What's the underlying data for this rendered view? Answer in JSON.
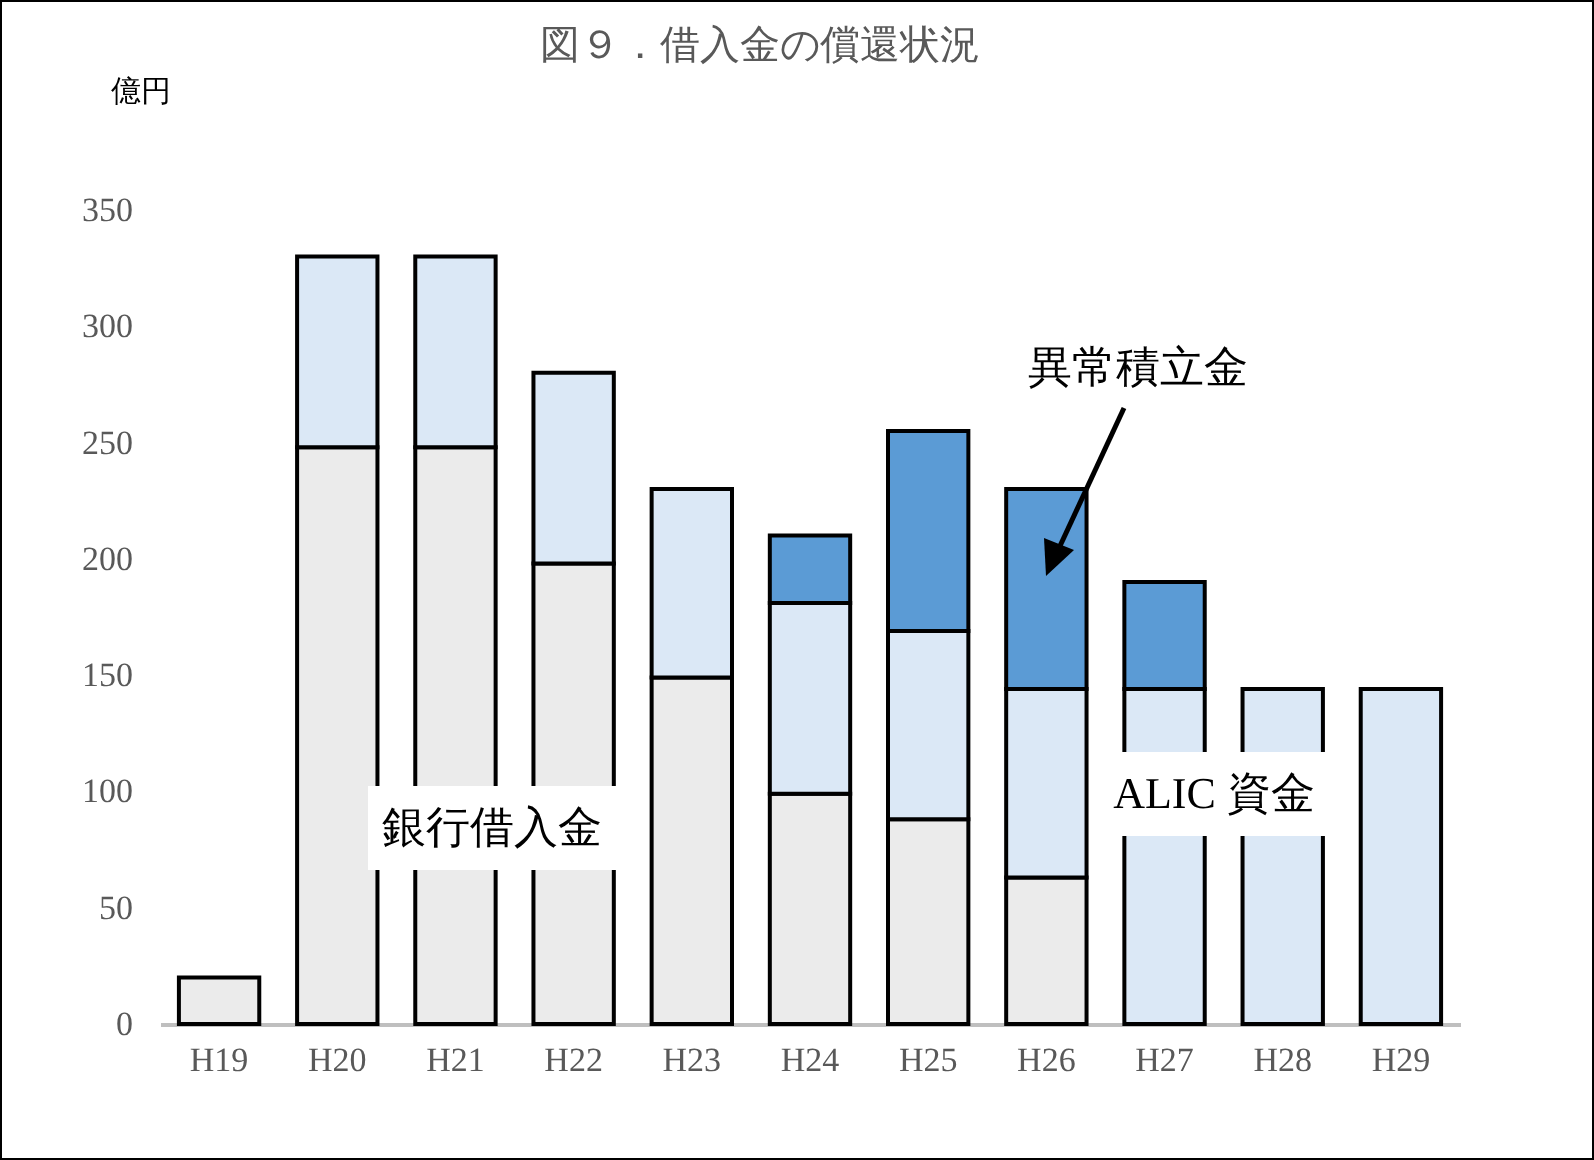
{
  "chart_data": {
    "type": "bar",
    "title": "図９．借入金の償還状況",
    "ylabel": "億円",
    "stacked": true,
    "categories": [
      "H19",
      "H20",
      "H21",
      "H22",
      "H23",
      "H24",
      "H25",
      "H26",
      "H27",
      "H28",
      "H29"
    ],
    "series": [
      {
        "name": "銀行借入金",
        "color": "#ebebeb",
        "values": [
          20,
          248,
          248,
          198,
          149,
          99,
          88,
          63,
          null,
          null,
          null
        ]
      },
      {
        "name": "ALIC 資金",
        "color": "#dbe8f6",
        "values": [
          null,
          82,
          82,
          82,
          81,
          82,
          81,
          81,
          144,
          144,
          144
        ]
      },
      {
        "name": "異常積立金",
        "color": "#5b9bd5",
        "values": [
          null,
          null,
          null,
          null,
          null,
          29,
          86,
          86,
          46,
          null,
          null
        ]
      }
    ],
    "ylim": [
      0,
      350
    ],
    "yticks": [
      0,
      50,
      100,
      150,
      200,
      250,
      300,
      350
    ]
  }
}
